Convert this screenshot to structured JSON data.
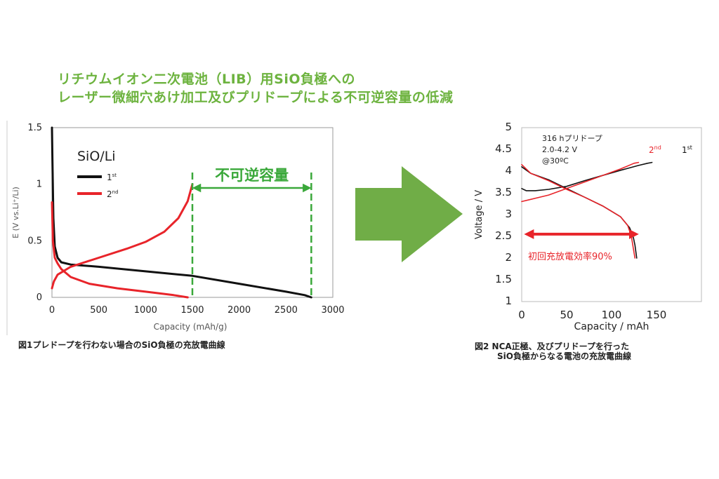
{
  "title": {
    "line1": "リチウムイオン二次電池（LIB）用SiO負極への",
    "line2": "レーザー微細穴あけ加工及びプリドープによる不可逆容量の低減"
  },
  "colors": {
    "title_green": "#6db33f",
    "arrow_green": "#70ad47",
    "series_black": "#111111",
    "series_red": "#e8242a",
    "annotation_green": "#3aa83a"
  },
  "chart_data": [
    {
      "type": "line",
      "legend_title": "SiO/Li",
      "xlabel": "Capacity (mAh/g)",
      "ylabel": "E (V vs.Li⁺/Li)",
      "xlim": [
        0,
        3000
      ],
      "ylim": [
        0,
        1.5
      ],
      "xticks": [
        0,
        500,
        1000,
        1500,
        2000,
        2500,
        3000
      ],
      "yticks": [
        0,
        0.5,
        1,
        1.5
      ],
      "xtick_labels": [
        "0",
        "500",
        "1000",
        "1500",
        "2000",
        "2500",
        "3000"
      ],
      "ytick_labels": [
        "0",
        "0.5",
        "1",
        "1.5"
      ],
      "series": [
        {
          "name": "1st",
          "color": "#111111",
          "points": [
            [
              0,
              1.5
            ],
            [
              5,
              1.2
            ],
            [
              15,
              0.7
            ],
            [
              30,
              0.45
            ],
            [
              60,
              0.35
            ],
            [
              100,
              0.31
            ],
            [
              200,
              0.29
            ],
            [
              500,
              0.27
            ],
            [
              1000,
              0.23
            ],
            [
              1500,
              0.19
            ],
            [
              2000,
              0.12
            ],
            [
              2500,
              0.05
            ],
            [
              2700,
              0.02
            ],
            [
              2770,
              0.0
            ]
          ]
        },
        {
          "name": "2nd",
          "color": "#e8242a",
          "points": [
            [
              0,
              0.84
            ],
            [
              10,
              0.5
            ],
            [
              30,
              0.35
            ],
            [
              60,
              0.3
            ],
            [
              100,
              0.25
            ],
            [
              200,
              0.18
            ],
            [
              400,
              0.12
            ],
            [
              700,
              0.08
            ],
            [
              1000,
              0.05
            ],
            [
              1300,
              0.02
            ],
            [
              1450,
              0.0
            ]
          ]
        },
        {
          "name": "2nd (charge)",
          "color": "#e8242a",
          "points": [
            [
              0,
              0.08
            ],
            [
              20,
              0.14
            ],
            [
              60,
              0.2
            ],
            [
              200,
              0.27
            ],
            [
              500,
              0.35
            ],
            [
              800,
              0.43
            ],
            [
              1000,
              0.49
            ],
            [
              1200,
              0.58
            ],
            [
              1350,
              0.7
            ],
            [
              1450,
              0.85
            ],
            [
              1500,
              1.0
            ]
          ]
        }
      ],
      "legend": [
        {
          "label": "1",
          "sup": "st",
          "color": "#111111"
        },
        {
          "label": "2",
          "sup": "nd",
          "color": "#e8242a"
        }
      ],
      "annotation": {
        "label": "不可逆容量",
        "from": 1500,
        "to": 2770,
        "color": "#3aa83a"
      },
      "caption": "図1プレドープを行わない場合のSiO負極の充放電曲線"
    },
    {
      "type": "line",
      "xlabel": "Capacity / mAh",
      "ylabel": "Voltage / V",
      "xlim": [
        0,
        200
      ],
      "ylim": [
        1,
        5
      ],
      "xticks": [
        0,
        50,
        100,
        150
      ],
      "yticks": [
        1,
        1.5,
        2,
        2.5,
        3,
        3.5,
        4,
        4.5,
        5
      ],
      "xtick_labels": [
        "0",
        "50",
        "100",
        "150"
      ],
      "ytick_labels": [
        "1",
        "1.5",
        "2",
        "2.5",
        "3",
        "3.5",
        "4",
        "4.5",
        "5"
      ],
      "info_text": [
        "316 hプリドープ",
        "2.0-4.2 V",
        "@30ºC"
      ],
      "series": [
        {
          "name": "1st charge",
          "color": "#111111",
          "points": [
            [
              0,
              3.6
            ],
            [
              5,
              3.55
            ],
            [
              15,
              3.55
            ],
            [
              30,
              3.58
            ],
            [
              50,
              3.65
            ],
            [
              70,
              3.78
            ],
            [
              90,
              3.9
            ],
            [
              110,
              4.02
            ],
            [
              130,
              4.13
            ],
            [
              140,
              4.18
            ],
            [
              145,
              4.2
            ]
          ]
        },
        {
          "name": "1st discharge",
          "color": "#111111",
          "points": [
            [
              0,
              4.1
            ],
            [
              10,
              3.95
            ],
            [
              30,
              3.8
            ],
            [
              50,
              3.6
            ],
            [
              70,
              3.4
            ],
            [
              90,
              3.2
            ],
            [
              110,
              2.95
            ],
            [
              120,
              2.7
            ],
            [
              124,
              2.5
            ],
            [
              126,
              2.3
            ],
            [
              128,
              2.0
            ]
          ]
        },
        {
          "name": "2nd charge",
          "color": "#e8242a",
          "points": [
            [
              0,
              3.3
            ],
            [
              10,
              3.35
            ],
            [
              30,
              3.45
            ],
            [
              50,
              3.6
            ],
            [
              70,
              3.75
            ],
            [
              90,
              3.9
            ],
            [
              110,
              4.05
            ],
            [
              125,
              4.18
            ],
            [
              130,
              4.2
            ]
          ]
        },
        {
          "name": "2nd discharge",
          "color": "#e8242a",
          "points": [
            [
              0,
              4.15
            ],
            [
              10,
              3.95
            ],
            [
              30,
              3.78
            ],
            [
              50,
              3.58
            ],
            [
              70,
              3.4
            ],
            [
              90,
              3.2
            ],
            [
              110,
              2.95
            ],
            [
              118,
              2.75
            ],
            [
              122,
              2.5
            ],
            [
              124,
              2.25
            ],
            [
              126,
              2.0
            ]
          ]
        }
      ],
      "series_labels": [
        {
          "label": "2",
          "sup": "nd",
          "color": "#e8242a"
        },
        {
          "label": "1",
          "sup": "st",
          "color": "#111111"
        }
      ],
      "annotation": {
        "label": "初回充放電効率90%",
        "from": 5,
        "to": 128,
        "value": 2.55,
        "color": "#e8242a"
      },
      "caption_line1": "図2 NCA正極、及びプリドープを行った",
      "caption_line2": "SiO負極からなる電池の充放電曲線"
    }
  ]
}
